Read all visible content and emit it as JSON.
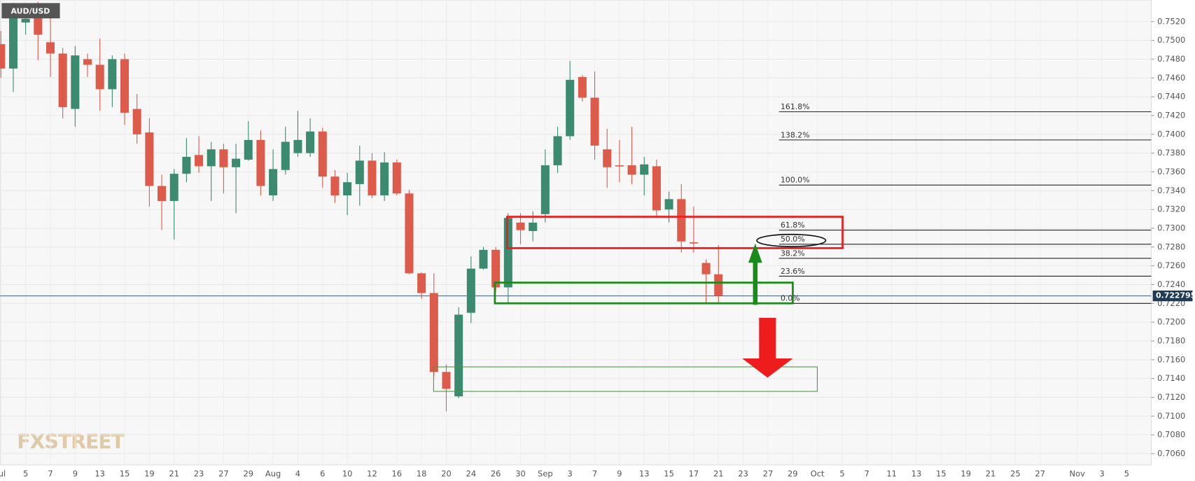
{
  "chart_data": {
    "type": "candlestick",
    "symbol": "AUD/USD",
    "watermark": "FXSTREET",
    "categories": [
      "Jul",
      null,
      "5",
      null,
      "7",
      null,
      "9",
      null,
      "13",
      null,
      "15",
      null,
      "19",
      null,
      "21",
      null,
      "23",
      null,
      "27",
      null,
      "29",
      null,
      "Aug",
      null,
      "4",
      null,
      "6",
      null,
      "10",
      null,
      "12",
      null,
      "16",
      null,
      "18",
      null,
      "20",
      null,
      "24",
      null,
      "26",
      null,
      "30",
      null,
      "Sep",
      null,
      "3",
      null,
      "7",
      null,
      "9",
      null,
      "13",
      null,
      "15",
      null,
      "17",
      null,
      "21",
      null,
      "23",
      null,
      "27",
      null,
      "29",
      null,
      "Oct",
      null,
      "5",
      null,
      "7",
      null,
      "11",
      null,
      "13",
      null,
      "15",
      null,
      "19",
      null,
      "21",
      null,
      "25",
      null,
      "27",
      null,
      null,
      "Nov",
      null,
      "3",
      null,
      "5",
      null
    ],
    "open": [
      0.7496,
      0.747,
      0.7519,
      0.7535,
      0.7498,
      0.7486,
      0.7427,
      0.748,
      0.7474,
      0.7448,
      0.748,
      0.7427,
      0.7402,
      0.7345,
      0.7329,
      0.7358,
      0.7378,
      0.7366,
      0.7384,
      0.7365,
      0.7373,
      0.7394,
      0.7335,
      0.7362,
      0.738,
      0.738,
      0.7403,
      0.7355,
      0.7335,
      0.7347,
      0.7372,
      0.7335,
      0.737,
      0.7337,
      0.7252,
      0.7231,
      0.7147,
      0.7121,
      0.721,
      0.7257,
      0.7277,
      0.7237,
      0.7306,
      0.7297,
      0.7315,
      0.7367,
      0.7398,
      0.7461,
      0.7439,
      0.7384,
      0.7367,
      0.7367,
      0.7357,
      0.7366,
      0.732,
      0.7331,
      0.7285,
      0.7263,
      0.7251,
      null,
      null,
      null,
      null,
      null,
      null,
      null,
      null,
      null,
      null,
      null,
      null,
      null,
      null,
      null,
      null,
      null,
      null,
      null,
      null,
      null,
      null,
      null,
      null,
      null,
      null,
      null,
      null,
      null,
      null,
      null,
      null,
      null,
      null
    ],
    "high": [
      0.751,
      0.754,
      0.7532,
      0.7541,
      0.7527,
      0.7492,
      0.7494,
      0.7486,
      0.7502,
      0.7484,
      0.7486,
      0.7443,
      0.7417,
      0.7357,
      0.7363,
      0.7396,
      0.7398,
      0.7392,
      0.739,
      0.739,
      0.7414,
      0.7404,
      0.7384,
      0.7408,
      0.7425,
      0.7417,
      0.7407,
      0.7362,
      0.7359,
      0.7388,
      0.738,
      0.7381,
      0.7373,
      0.7341,
      0.7253,
      0.7252,
      0.7155,
      0.7216,
      0.727,
      0.728,
      0.728,
      0.7316,
      0.7316,
      0.7318,
      0.7384,
      0.7408,
      0.7478,
      0.7463,
      0.7467,
      0.7406,
      0.7394,
      0.7408,
      0.7376,
      0.7373,
      0.7339,
      0.7347,
      0.7323,
      0.7267,
      0.7282,
      null,
      null,
      null,
      null,
      null,
      null,
      null,
      null,
      null,
      null,
      null,
      null,
      null,
      null,
      null,
      null,
      null,
      null,
      null,
      null,
      null,
      null,
      null,
      null,
      null,
      null,
      null,
      null,
      null,
      null,
      null,
      null,
      null,
      null
    ],
    "low": [
      0.746,
      0.7445,
      0.7506,
      0.7479,
      0.7461,
      0.7417,
      0.7408,
      0.7461,
      0.7425,
      0.7429,
      0.741,
      0.739,
      0.7323,
      0.7298,
      0.7288,
      0.7349,
      0.7359,
      0.7329,
      0.7337,
      0.7316,
      0.7372,
      0.7335,
      0.7329,
      0.7357,
      0.7376,
      0.7376,
      0.7343,
      0.7327,
      0.7314,
      0.7324,
      0.7332,
      0.7329,
      0.7335,
      0.7251,
      0.7225,
      0.7142,
      0.7105,
      0.7119,
      0.7199,
      0.7256,
      0.7233,
      0.7221,
      0.7283,
      0.7286,
      0.7306,
      0.7359,
      0.7394,
      0.7435,
      0.7373,
      0.7343,
      0.7349,
      0.7347,
      0.7335,
      0.7313,
      0.7306,
      0.7274,
      0.7274,
      0.7221,
      0.7221,
      null,
      null,
      null,
      null,
      null,
      null,
      null,
      null,
      null,
      null,
      null,
      null,
      null,
      null,
      null,
      null,
      null,
      null,
      null,
      null,
      null,
      null,
      null,
      null,
      null,
      null,
      null,
      null,
      null,
      null,
      null,
      null,
      null,
      null
    ],
    "close": [
      0.747,
      0.7527,
      0.7523,
      0.7506,
      0.7486,
      0.7429,
      0.7484,
      0.7474,
      0.7448,
      0.748,
      0.7423,
      0.74,
      0.7345,
      0.7329,
      0.7358,
      0.7376,
      0.7366,
      0.7384,
      0.7365,
      0.7374,
      0.7394,
      0.7345,
      0.7363,
      0.7392,
      0.7394,
      0.7403,
      0.7355,
      0.7335,
      0.7349,
      0.7372,
      0.7335,
      0.737,
      0.7337,
      0.7252,
      0.7231,
      0.7147,
      0.7129,
      0.7208,
      0.7257,
      0.7277,
      0.7237,
      0.7311,
      0.7298,
      0.7306,
      0.7367,
      0.7398,
      0.7458,
      0.7439,
      0.7388,
      0.7365,
      0.7366,
      0.7357,
      0.7368,
      0.7319,
      0.7331,
      0.7286,
      0.7284,
      0.7251,
      0.7228,
      null,
      null,
      null,
      null,
      null,
      null,
      null,
      null,
      null,
      null,
      null,
      null,
      null,
      null,
      null,
      null,
      null,
      null,
      null,
      null,
      null,
      null,
      null,
      null,
      null,
      null,
      null,
      null,
      null,
      null,
      null,
      null,
      null,
      null
    ],
    "up_color": "#3c8a70",
    "down_color": "#dc5b4b",
    "grid": true,
    "ylim": [
      0.7048,
      0.7543
    ],
    "yticks": [
      {
        "value": 0.706,
        "label": "0.7060"
      },
      {
        "value": 0.708,
        "label": "0.7080"
      },
      {
        "value": 0.71,
        "label": "0.7100"
      },
      {
        "value": 0.712,
        "label": "0.7120"
      },
      {
        "value": 0.714,
        "label": "0.7140"
      },
      {
        "value": 0.716,
        "label": "0.7160"
      },
      {
        "value": 0.718,
        "label": "0.7180"
      },
      {
        "value": 0.72,
        "label": "0.7200"
      },
      {
        "value": 0.722,
        "label": "0.7220"
      },
      {
        "value": 0.724,
        "label": "0.7240"
      },
      {
        "value": 0.726,
        "label": "0.7260"
      },
      {
        "value": 0.728,
        "label": "0.7280"
      },
      {
        "value": 0.73,
        "label": "0.7300"
      },
      {
        "value": 0.732,
        "label": "0.7320"
      },
      {
        "value": 0.734,
        "label": "0.7340"
      },
      {
        "value": 0.736,
        "label": "0.7360"
      },
      {
        "value": 0.738,
        "label": "0.7380"
      },
      {
        "value": 0.74,
        "label": "0.7400"
      },
      {
        "value": 0.742,
        "label": "0.7420"
      },
      {
        "value": 0.744,
        "label": "0.7440"
      },
      {
        "value": 0.746,
        "label": "0.7460"
      },
      {
        "value": 0.748,
        "label": "0.7480"
      },
      {
        "value": 0.75,
        "label": "0.7500"
      },
      {
        "value": 0.752,
        "label": "0.7520"
      }
    ],
    "last_price": 0.722795,
    "fib_levels": [
      {
        "label": "161.8%",
        "value": 0.7424
      },
      {
        "label": "138.2%",
        "value": 0.7394
      },
      {
        "label": "100.0%",
        "value": 0.7346
      },
      {
        "label": "61.8%",
        "value": 0.7298
      },
      {
        "label": "50.0%",
        "value": 0.7283
      },
      {
        "label": "38.2%",
        "value": 0.7268
      },
      {
        "label": "23.6%",
        "value": 0.7249
      },
      {
        "label": "0.0%",
        "value": 0.722
      }
    ]
  }
}
